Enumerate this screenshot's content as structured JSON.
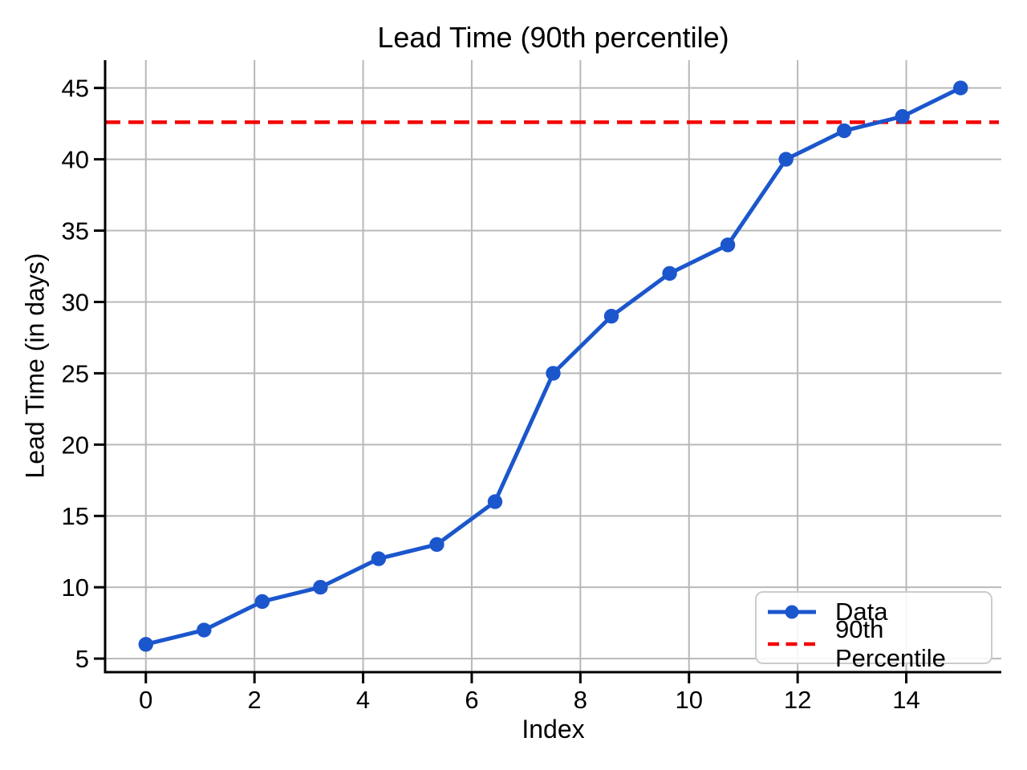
{
  "chart_data": {
    "type": "line",
    "title": "Lead Time (90th percentile)",
    "xlabel": "Index",
    "ylabel": "Lead Time (in days)",
    "series": [
      {
        "name": "Data",
        "color": "#1b56cc",
        "marker": "circle",
        "x": [
          0,
          1.0714,
          2.1429,
          3.2143,
          4.2857,
          5.3571,
          6.4286,
          7.5,
          8.5714,
          9.6429,
          10.7143,
          11.7857,
          12.8571,
          13.9286,
          15
        ],
        "y": [
          6,
          7,
          9,
          10,
          12,
          13,
          16,
          25,
          29,
          32,
          34,
          40,
          42,
          43,
          45
        ]
      }
    ],
    "reference_line": {
      "name": "90th Percentile",
      "value": 42.6,
      "color": "#f40000",
      "style": "dashed"
    },
    "xlim": [
      -0.75,
      15.75
    ],
    "ylim": [
      4.05,
      46.95
    ],
    "xticks": [
      0,
      2,
      4,
      6,
      8,
      10,
      12,
      14
    ],
    "yticks": [
      5,
      10,
      15,
      20,
      25,
      30,
      35,
      40,
      45
    ],
    "grid": true,
    "legend": {
      "position": "lower right",
      "items": [
        "Data",
        "90th Percentile"
      ]
    }
  },
  "colors": {
    "grid": "#b8b8b8",
    "spine": "#000000",
    "text": "#000000",
    "legend_border": "#cccccc",
    "background": "#ffffff"
  }
}
